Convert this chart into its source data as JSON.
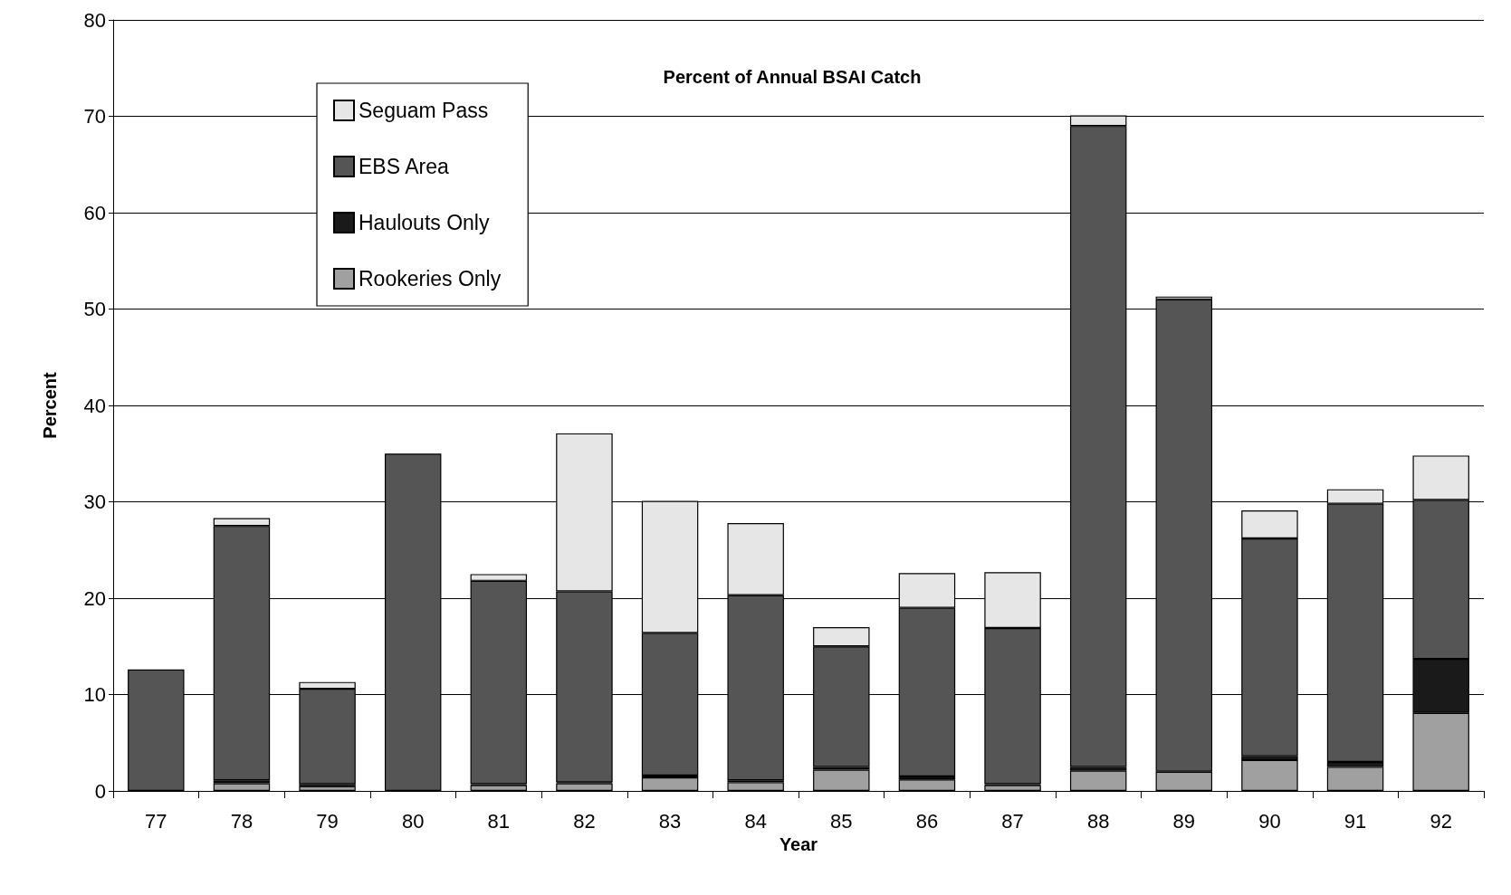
{
  "chart_data": {
    "type": "bar",
    "title": "Percent of Annual BSAI Catch",
    "xlabel": "Year",
    "ylabel": "Percent",
    "categories": [
      "77",
      "78",
      "79",
      "80",
      "81",
      "82",
      "83",
      "84",
      "85",
      "86",
      "87",
      "88",
      "89",
      "90",
      "91",
      "92"
    ],
    "stacked": true,
    "series": [
      {
        "name": "Rookeries Only",
        "color": "#a0a0a0",
        "values": [
          0,
          0.8,
          0.5,
          0,
          0.6,
          0.8,
          1.4,
          0.9,
          2.2,
          1.2,
          0.6,
          2.1,
          2.0,
          3.2,
          2.5,
          8.1
        ]
      },
      {
        "name": "Haulouts Only",
        "color": "#1a1a1a",
        "values": [
          0,
          0.3,
          0.2,
          0,
          0.1,
          0.1,
          0.2,
          0.2,
          0.3,
          0.3,
          0.1,
          0.4,
          0,
          0.4,
          0.5,
          5.6
        ]
      },
      {
        "name": "EBS Area",
        "color": "#555555",
        "values": [
          12.6,
          26.4,
          9.9,
          35.0,
          21.1,
          19.8,
          14.8,
          19.2,
          12.5,
          17.5,
          16.2,
          66.5,
          49.0,
          22.6,
          26.8,
          16.5
        ]
      },
      {
        "name": "Seguam Pass",
        "color": "#e6e6e6",
        "values": [
          0,
          0.8,
          0.7,
          0,
          0.7,
          16.4,
          13.7,
          7.5,
          2.0,
          3.6,
          5.8,
          1.1,
          0.3,
          2.9,
          1.5,
          4.6
        ]
      }
    ],
    "ylim": [
      0,
      80
    ],
    "yticks": [
      0,
      10,
      20,
      30,
      40,
      50,
      60,
      70,
      80
    ],
    "grid": "y",
    "legend": "top left"
  }
}
